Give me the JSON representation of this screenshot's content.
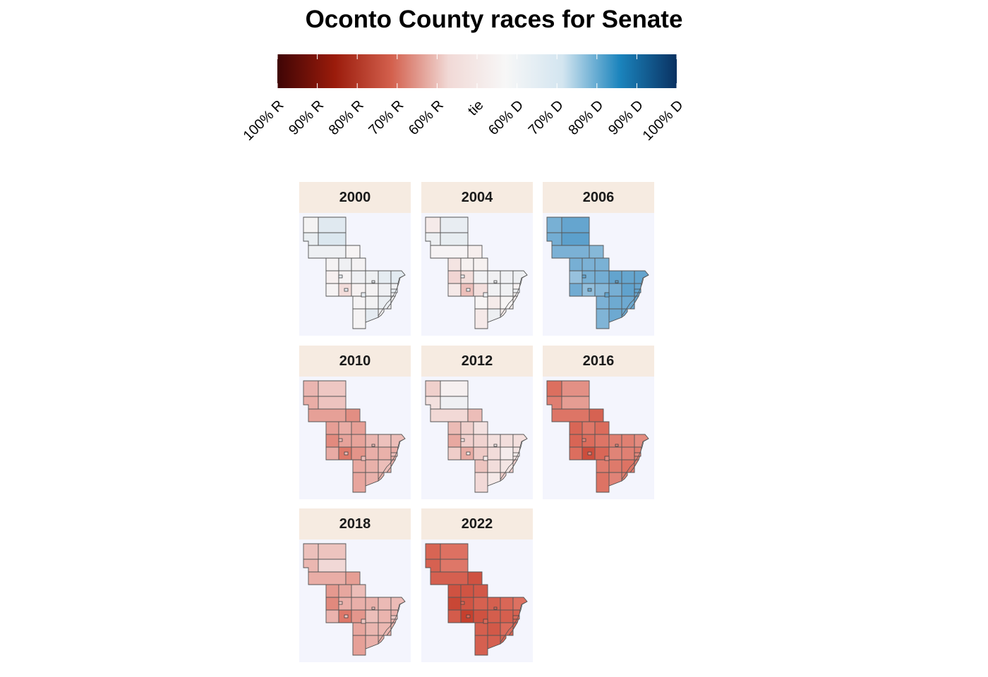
{
  "title": "Oconto County races for Senate",
  "legend": {
    "labels": [
      "100% R",
      "90% R",
      "80% R",
      "70% R",
      "60% R",
      "tie",
      "60% D",
      "70% D",
      "80% D",
      "90% D",
      "100% D"
    ],
    "colors": [
      "#3f0505",
      "#9a1b0b",
      "#d3604d",
      "#f1d9d6",
      "#f7f7f7",
      "#d3e5f0",
      "#1b84bd",
      "#0a3161"
    ]
  },
  "colors": {
    "panel_strip": "#f6ebe1",
    "panel_background": "#f4f5fd",
    "border": "#555555"
  },
  "panels": [
    {
      "year": "2000",
      "margin": 0.02
    },
    {
      "year": "2004",
      "margin": 0.0
    },
    {
      "year": "2006",
      "margin": 0.2
    },
    {
      "year": "2010",
      "margin": -0.08
    },
    {
      "year": "2012",
      "margin": -0.03
    },
    {
      "year": "2016",
      "margin": -0.14
    },
    {
      "year": "2018",
      "margin": -0.07
    },
    {
      "year": "2022",
      "margin": -0.18
    }
  ]
}
